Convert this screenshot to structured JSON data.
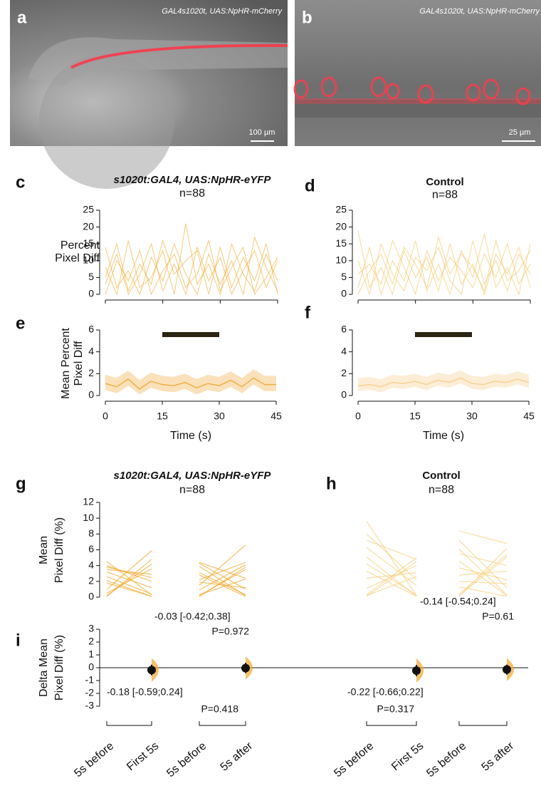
{
  "images": [
    {
      "label": "a",
      "caption": "GAL4s1020t, UAS:NpHR-mCherry",
      "scale_bar": "100 µm"
    },
    {
      "label": "b",
      "caption": "GAL4s1020t, UAS:NpHR-mCherry",
      "scale_bar": "25 µm"
    }
  ],
  "chart_data": [
    {
      "type": "line",
      "panel_label": "c",
      "title": "s1020t:GAL4, UAS:NpHR-eYFP",
      "subtitle": "n=88",
      "ylabel": [
        "Percent",
        "Pixel Diff"
      ],
      "xlim": [
        0,
        45
      ],
      "xticks": [
        0,
        15,
        30,
        45
      ],
      "ylim": [
        0,
        25
      ],
      "yticks": [
        0,
        5,
        10,
        15,
        20,
        25
      ],
      "x": [
        0,
        3,
        6,
        9,
        12,
        15,
        18,
        21,
        24,
        27,
        30,
        33,
        36,
        39,
        42,
        45
      ],
      "series": [
        {
          "color": "#f5a623",
          "values": [
            3,
            12,
            0,
            6,
            15,
            1,
            9,
            0,
            14,
            4,
            11,
            0,
            7,
            13,
            2,
            10
          ]
        },
        {
          "color": "#f5a623",
          "values": [
            8,
            0,
            16,
            2,
            5,
            13,
            0,
            21,
            3,
            9,
            0,
            15,
            6,
            1,
            12,
            4
          ]
        },
        {
          "color": "#f5a623",
          "values": [
            0,
            10,
            4,
            13,
            0,
            7,
            12,
            2,
            6,
            16,
            1,
            8,
            14,
            0,
            5,
            11
          ]
        },
        {
          "color": "#f5a623",
          "values": [
            14,
            2,
            7,
            0,
            11,
            4,
            15,
            6,
            0,
            12,
            3,
            10,
            0,
            17,
            8,
            1
          ]
        },
        {
          "color": "#f5a623",
          "values": [
            5,
            15,
            1,
            9,
            3,
            16,
            6,
            10,
            13,
            0,
            14,
            2,
            11,
            4,
            15,
            0
          ]
        }
      ]
    },
    {
      "type": "line",
      "panel_label": "d",
      "title": "Control",
      "subtitle": "n=88",
      "xlim": [
        0,
        45
      ],
      "xticks": [
        0,
        15,
        30,
        45
      ],
      "ylim": [
        0,
        25
      ],
      "yticks": [
        0,
        5,
        10,
        15,
        20,
        25
      ],
      "x": [
        0,
        3,
        6,
        9,
        12,
        15,
        18,
        21,
        24,
        27,
        30,
        33,
        36,
        39,
        42,
        45
      ],
      "series": [
        {
          "color": "#f8c255",
          "values": [
            19,
            2,
            8,
            0,
            13,
            5,
            11,
            1,
            15,
            3,
            9,
            0,
            12,
            6,
            14,
            2
          ]
        },
        {
          "color": "#f8c255",
          "values": [
            2,
            14,
            0,
            10,
            4,
            16,
            1,
            9,
            0,
            13,
            5,
            18,
            2,
            8,
            0,
            15
          ]
        },
        {
          "color": "#f8c255",
          "values": [
            10,
            0,
            15,
            6,
            1,
            11,
            7,
            14,
            4,
            0,
            16,
            3,
            10,
            1,
            12,
            6
          ]
        },
        {
          "color": "#f8c255",
          "values": [
            6,
            9,
            3,
            16,
            8,
            0,
            13,
            4,
            11,
            7,
            2,
            12,
            5,
            15,
            3,
            9
          ]
        },
        {
          "color": "#f8c255",
          "values": [
            0,
            7,
            12,
            3,
            14,
            9,
            2,
            17,
            6,
            12,
            8,
            1,
            16,
            4,
            7,
            13
          ]
        }
      ]
    },
    {
      "type": "line",
      "panel_label": "e",
      "ylabel": [
        "Mean Percent",
        "Pixel Diff"
      ],
      "xlabel": "Time (s)",
      "xlim": [
        0,
        45
      ],
      "xticks": [
        0,
        15,
        30,
        45
      ],
      "ylim": [
        0,
        6
      ],
      "yticks": [
        0,
        2,
        4,
        6
      ],
      "stimulus": [
        15,
        30
      ],
      "stimulus_color": "#2b2412",
      "x": [
        0,
        3,
        6,
        9,
        12,
        15,
        18,
        21,
        24,
        27,
        30,
        33,
        36,
        39,
        42,
        45
      ],
      "series": [
        {
          "color": "#f0a93a",
          "values": [
            1.1,
            0.8,
            1.5,
            0.6,
            1.3,
            1.0,
            0.9,
            1.2,
            0.7,
            1.1,
            0.9,
            1.4,
            0.8,
            1.6,
            1.0,
            1.0
          ],
          "lower": [
            0.5,
            0.2,
            0.9,
            0.1,
            0.7,
            0.4,
            0.3,
            0.6,
            0.1,
            0.5,
            0.3,
            0.8,
            0.2,
            1.0,
            0.4,
            0.4
          ],
          "upper": [
            1.9,
            1.6,
            2.3,
            1.4,
            2.1,
            1.8,
            1.7,
            2.0,
            1.5,
            1.9,
            1.7,
            2.2,
            1.6,
            2.4,
            1.8,
            1.8
          ]
        }
      ]
    },
    {
      "type": "line",
      "panel_label": "f",
      "xlabel": "Time (s)",
      "xlim": [
        0,
        45
      ],
      "xticks": [
        0,
        15,
        30,
        45
      ],
      "ylim": [
        0,
        6
      ],
      "yticks": [
        0,
        2,
        4,
        6
      ],
      "stimulus": [
        15,
        30
      ],
      "stimulus_color": "#2b2412",
      "x": [
        0,
        3,
        6,
        9,
        12,
        15,
        18,
        21,
        24,
        27,
        30,
        33,
        36,
        39,
        42,
        45
      ],
      "series": [
        {
          "color": "#f6cd8a",
          "values": [
            0.9,
            1.0,
            0.8,
            1.2,
            1.1,
            1.3,
            1.0,
            1.4,
            1.2,
            1.6,
            1.1,
            1.0,
            1.3,
            1.2,
            1.5,
            1.2
          ],
          "lower": [
            0.4,
            0.5,
            0.3,
            0.7,
            0.6,
            0.8,
            0.5,
            0.9,
            0.7,
            1.1,
            0.6,
            0.5,
            0.8,
            0.7,
            1.0,
            0.7
          ],
          "upper": [
            1.6,
            1.7,
            1.5,
            1.9,
            1.8,
            2.0,
            1.7,
            2.1,
            1.9,
            2.3,
            1.8,
            1.7,
            2.0,
            1.9,
            2.2,
            1.9
          ]
        }
      ]
    },
    {
      "type": "paired",
      "panel_label": "g",
      "title": "s1020t:GAL4, UAS:NpHR-eYFP",
      "subtitle": "n=88",
      "ylabel": [
        "Mean",
        "Pixel Diff (%)"
      ],
      "ylim": [
        0,
        12
      ],
      "yticks": [
        0,
        2,
        4,
        6,
        8,
        10,
        12
      ],
      "color": "#f5a623",
      "groups": [
        {
          "before": [
            4.5,
            3.8,
            0.2,
            2.1,
            1.0,
            3.2,
            0.5,
            4.0,
            2.6,
            0.1,
            1.8,
            3.5
          ],
          "after": [
            0.3,
            2.5,
            4.2,
            0.1,
            5.9,
            1.2,
            3.6,
            2.0,
            0.4,
            4.8,
            0.1,
            2.9
          ]
        },
        {
          "before": [
            4.3,
            2.2,
            0.3,
            3.9,
            1.5,
            0.1,
            2.8,
            4.4,
            0.9,
            3.1,
            0.2,
            1.9
          ],
          "after": [
            1.0,
            4.4,
            2.3,
            0.2,
            6.6,
            3.8,
            0.1,
            2.4,
            4.1,
            0.3,
            3.5,
            1.2
          ]
        }
      ]
    },
    {
      "type": "paired",
      "panel_label": "h",
      "title": "Control",
      "subtitle": "n=88",
      "ylim": [
        0,
        12
      ],
      "color": "#fbcf7a",
      "groups": [
        {
          "before": [
            9.6,
            7.2,
            0.3,
            5.1,
            2.4,
            8.0,
            1.1,
            4.2,
            6.3,
            0.2,
            3.3,
            0.1
          ],
          "after": [
            0.2,
            4.8,
            5.0,
            0.1,
            3.1,
            2.2,
            4.0,
            0.3,
            1.5,
            2.6,
            0.1,
            4.5
          ]
        },
        {
          "before": [
            8.4,
            6.1,
            0.2,
            3.7,
            1.3,
            5.5,
            0.1,
            7.2,
            2.8,
            4.6,
            0.4,
            2.0
          ],
          "after": [
            6.8,
            0.3,
            5.1,
            2.2,
            0.1,
            4.0,
            6.2,
            1.2,
            3.3,
            0.2,
            5.4,
            1.7
          ]
        }
      ]
    },
    {
      "type": "estimation",
      "panel_label": "i",
      "ylabel": [
        "Delta Mean",
        "Pixel Diff (%)"
      ],
      "ylim": [
        -3,
        3
      ],
      "yticks": [
        -3,
        -2,
        -1,
        0,
        1,
        2,
        3
      ],
      "categories": [
        "5s before",
        "First 5s",
        "5s before",
        "5s after",
        "5s before",
        "First 5s",
        "5s before",
        "5s after"
      ],
      "comparisons": [
        {
          "mean": -0.18,
          "ci_low": -0.59,
          "ci_high": 0.24,
          "label": "-0.18 [-0.59;0.24]",
          "p_label": "P=0.418"
        },
        {
          "mean": -0.03,
          "ci_low": -0.42,
          "ci_high": 0.38,
          "label": "-0.03 [-0.42;0.38]",
          "p_label": "P=0.972"
        },
        {
          "mean": -0.22,
          "ci_low": -0.66,
          "ci_high": 0.22,
          "label": "-0.22 [-0.66;0.22]",
          "p_label": "P=0.317"
        },
        {
          "mean": -0.14,
          "ci_low": -0.54,
          "ci_high": 0.24,
          "label": "-0.14 [-0.54;0.24]",
          "p_label": "P=0.61"
        }
      ]
    }
  ]
}
